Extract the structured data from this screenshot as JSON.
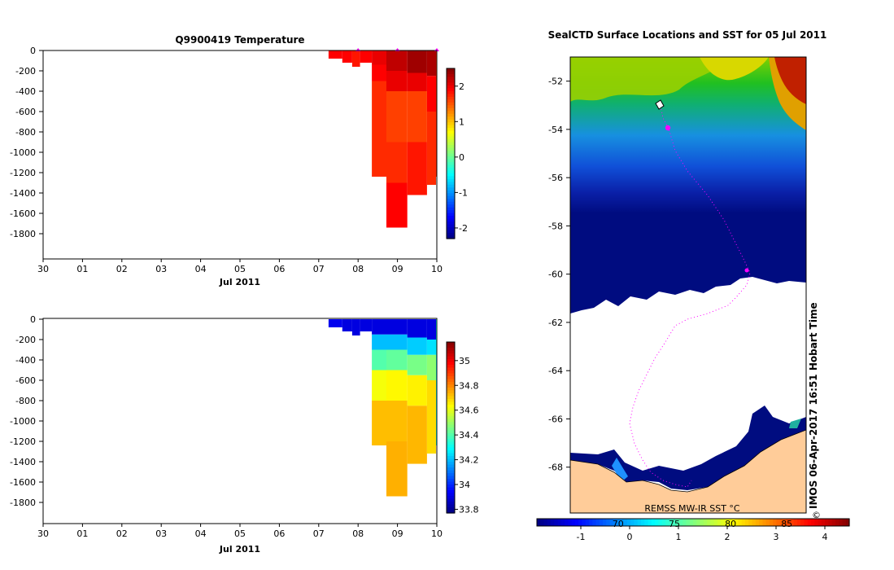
{
  "chart_data": [
    {
      "type": "heatmap",
      "title": "Q9900419  Temperature",
      "xlabel": "Jul 2011",
      "x_tick_labels": [
        "30",
        "01",
        "02",
        "03",
        "04",
        "05",
        "06",
        "07",
        "08",
        "09",
        "10"
      ],
      "x_range_days": [
        0,
        10
      ],
      "y_tick_labels": [
        "0",
        "-200",
        "-400",
        "-600",
        "-800",
        "-1000",
        "-1200",
        "-1400",
        "-1600",
        "-1800"
      ],
      "ylim": [
        -2000,
        0
      ],
      "colorbar": {
        "min": -2.3,
        "max": 2.5,
        "ticks": [
          2,
          1,
          0,
          -1,
          -2
        ],
        "colormap": "jet"
      },
      "profiles": [
        {
          "x0": 7.25,
          "x1": 7.6,
          "max_depth": 80,
          "sections": [
            {
              "to": 80,
              "value": 1.9
            }
          ]
        },
        {
          "x0": 7.6,
          "x1": 7.85,
          "max_depth": 120,
          "sections": [
            {
              "to": 120,
              "value": 1.9
            }
          ]
        },
        {
          "x0": 7.85,
          "x1": 8.05,
          "max_depth": 160,
          "sections": [
            {
              "to": 160,
              "value": 1.8
            }
          ]
        },
        {
          "x0": 8.05,
          "x1": 8.35,
          "max_depth": 120,
          "sections": [
            {
              "to": 120,
              "value": 1.9
            }
          ]
        },
        {
          "x0": 8.35,
          "x1": 8.72,
          "max_depth": 1240,
          "sections": [
            {
              "to": 140,
              "value": 2.0
            },
            {
              "to": 300,
              "value": 1.9
            },
            {
              "to": 1240,
              "value": 1.7
            }
          ]
        },
        {
          "x0": 8.72,
          "x1": 9.25,
          "max_depth": 1740,
          "sections": [
            {
              "to": 200,
              "value": 2.2
            },
            {
              "to": 400,
              "value": 2.0
            },
            {
              "to": 900,
              "value": 1.6
            },
            {
              "to": 1300,
              "value": 1.7
            },
            {
              "to": 1740,
              "value": 1.9
            }
          ]
        },
        {
          "x0": 9.25,
          "x1": 9.75,
          "max_depth": 1420,
          "sections": [
            {
              "to": 220,
              "value": 2.35
            },
            {
              "to": 400,
              "value": 2.0
            },
            {
              "to": 900,
              "value": 1.6
            },
            {
              "to": 1420,
              "value": 1.8
            }
          ]
        },
        {
          "x0": 9.75,
          "x1": 9.98,
          "max_depth": 1320,
          "sections": [
            {
              "to": 250,
              "value": 2.3
            },
            {
              "to": 600,
              "value": 1.9
            },
            {
              "to": 1320,
              "value": 1.7
            }
          ]
        },
        {
          "x0": 9.98,
          "x1": 10.05,
          "max_depth": 1240,
          "sections": [
            {
              "to": 1240,
              "value": 1.7
            }
          ]
        }
      ],
      "surface_markers": [
        8.0,
        9.0,
        10.0
      ]
    },
    {
      "type": "heatmap",
      "title": "",
      "xlabel": "Jul 2011",
      "x_tick_labels": [
        "30",
        "01",
        "02",
        "03",
        "04",
        "05",
        "06",
        "07",
        "08",
        "09",
        "10"
      ],
      "x_range_days": [
        0,
        10
      ],
      "y_tick_labels": [
        "0",
        "-200",
        "-400",
        "-600",
        "-800",
        "-1000",
        "-1200",
        "-1400",
        "-1600",
        "-1800"
      ],
      "ylim": [
        -2000,
        0
      ],
      "colorbar": {
        "min": 33.77,
        "max": 35.15,
        "ticks": [
          35,
          34.8,
          34.6,
          34.4,
          34.2,
          34,
          33.8
        ],
        "colormap": "jet"
      },
      "profiles": [
        {
          "x0": 7.25,
          "x1": 7.6,
          "max_depth": 80,
          "sections": [
            {
              "to": 80,
              "value": 33.92
            }
          ]
        },
        {
          "x0": 7.6,
          "x1": 7.85,
          "max_depth": 120,
          "sections": [
            {
              "to": 120,
              "value": 33.9
            }
          ]
        },
        {
          "x0": 7.85,
          "x1": 8.05,
          "max_depth": 160,
          "sections": [
            {
              "to": 160,
              "value": 33.9
            }
          ]
        },
        {
          "x0": 8.05,
          "x1": 8.35,
          "max_depth": 120,
          "sections": [
            {
              "to": 120,
              "value": 33.9
            }
          ]
        },
        {
          "x0": 8.35,
          "x1": 8.72,
          "max_depth": 1240,
          "sections": [
            {
              "to": 150,
              "value": 33.9
            },
            {
              "to": 300,
              "value": 34.2
            },
            {
              "to": 500,
              "value": 34.4
            },
            {
              "to": 800,
              "value": 34.62
            },
            {
              "to": 1240,
              "value": 34.72
            }
          ]
        },
        {
          "x0": 8.72,
          "x1": 9.25,
          "max_depth": 1740,
          "sections": [
            {
              "to": 150,
              "value": 33.9
            },
            {
              "to": 300,
              "value": 34.2
            },
            {
              "to": 500,
              "value": 34.42
            },
            {
              "to": 800,
              "value": 34.64
            },
            {
              "to": 1200,
              "value": 34.72
            },
            {
              "to": 1740,
              "value": 34.74
            }
          ]
        },
        {
          "x0": 9.25,
          "x1": 9.75,
          "max_depth": 1420,
          "sections": [
            {
              "to": 180,
              "value": 33.9
            },
            {
              "to": 350,
              "value": 34.22
            },
            {
              "to": 550,
              "value": 34.45
            },
            {
              "to": 850,
              "value": 34.65
            },
            {
              "to": 1420,
              "value": 34.73
            }
          ]
        },
        {
          "x0": 9.75,
          "x1": 9.98,
          "max_depth": 1320,
          "sections": [
            {
              "to": 200,
              "value": 33.9
            },
            {
              "to": 350,
              "value": 34.25
            },
            {
              "to": 600,
              "value": 34.48
            },
            {
              "to": 1320,
              "value": 34.68
            }
          ]
        },
        {
          "x0": 9.98,
          "x1": 10.05,
          "max_depth": 1240,
          "sections": [
            {
              "to": 1240,
              "value": 34.3
            }
          ]
        }
      ]
    },
    {
      "type": "heatmap",
      "title": "SealCTD Surface Locations and SST for 05 Jul 2011",
      "y_tick_labels": [
        "-52",
        "-54",
        "-56",
        "-58",
        "-60",
        "-62",
        "-64",
        "-66",
        "-68"
      ],
      "ylim": [
        -69.9,
        -51.0
      ],
      "colorbar": {
        "min": -1.9,
        "max": 4.5,
        "ticks": [
          -1,
          0,
          1,
          2,
          3,
          4
        ],
        "overlay_labels": [
          "70",
          "75",
          "80",
          "85"
        ],
        "colormap": "jet"
      },
      "source_label": "REMSS MW-IR SST °C",
      "timestamp_label": "IMOS 06-Apr-2017 16:51 Hobart Time",
      "copyright_symbol": "©",
      "track_color": "#ff00ff"
    }
  ]
}
